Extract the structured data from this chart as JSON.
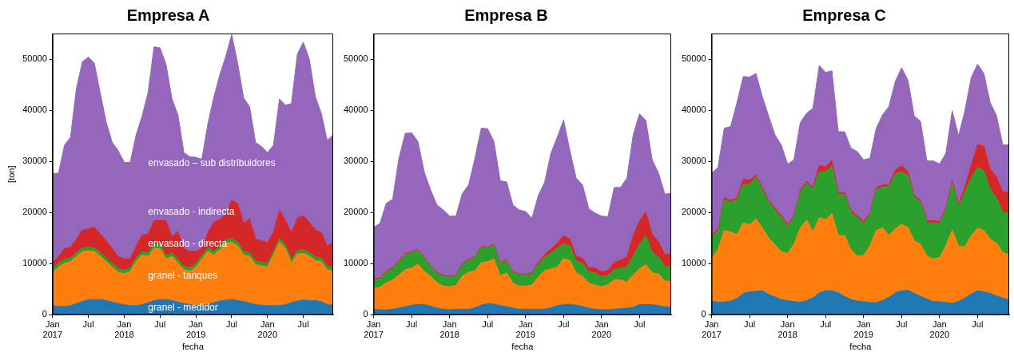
{
  "chart_data": [
    {
      "type": "area",
      "title": "Empresa A",
      "xlabel": "fecha",
      "ylabel": "[ton]",
      "stacked": true,
      "x": [
        "2017-01",
        "2017-02",
        "2017-03",
        "2017-04",
        "2017-05",
        "2017-06",
        "2017-07",
        "2017-08",
        "2017-09",
        "2017-10",
        "2017-11",
        "2017-12",
        "2018-01",
        "2018-02",
        "2018-03",
        "2018-04",
        "2018-05",
        "2018-06",
        "2018-07",
        "2018-08",
        "2018-09",
        "2018-10",
        "2018-11",
        "2018-12",
        "2019-01",
        "2019-02",
        "2019-03",
        "2019-04",
        "2019-05",
        "2019-06",
        "2019-07",
        "2019-08",
        "2019-09",
        "2019-10",
        "2019-11",
        "2019-12",
        "2020-01",
        "2020-02",
        "2020-03",
        "2020-04",
        "2020-05",
        "2020-06",
        "2020-07",
        "2020-08",
        "2020-09",
        "2020-10",
        "2020-11",
        "2020-12"
      ],
      "xlim": [
        "2017-01",
        "2020-12"
      ],
      "xticks": [
        {
          "value": "2017-01",
          "label": "Jan\n2017"
        },
        {
          "value": "2017-07",
          "label": "Jul"
        },
        {
          "value": "2018-01",
          "label": "Jan\n2018"
        },
        {
          "value": "2018-07",
          "label": "Jul"
        },
        {
          "value": "2019-01",
          "label": "Jan\n2019"
        },
        {
          "value": "2019-07",
          "label": "Jul"
        },
        {
          "value": "2020-01",
          "label": "Jan\n2020"
        },
        {
          "value": "2020-07",
          "label": "Jul"
        }
      ],
      "ylim": [
        0,
        55000
      ],
      "yticks": [
        0,
        10000,
        20000,
        30000,
        40000,
        50000
      ],
      "series": [
        {
          "name": "granel - medidor",
          "color": "#1f77b4",
          "values": [
            1800,
            1700,
            1600,
            1800,
            2200,
            2600,
            3000,
            3000,
            3000,
            2800,
            2500,
            2200,
            2000,
            1800,
            1800,
            2000,
            2400,
            2800,
            3000,
            3000,
            2800,
            2500,
            2200,
            2000,
            1800,
            1800,
            2000,
            2400,
            2700,
            2900,
            3000,
            2800,
            2600,
            2300,
            2000,
            1900,
            1800,
            1800,
            1800,
            2000,
            2400,
            2700,
            2900,
            2800,
            2800,
            2600,
            2000,
            1900
          ]
        },
        {
          "name": "granel - tanques",
          "color": "#ff7f0e",
          "values": [
            6500,
            7600,
            8500,
            8600,
            9200,
            9800,
            9500,
            9400,
            8400,
            7600,
            6800,
            6100,
            6000,
            6700,
            8600,
            9700,
            9000,
            10200,
            10000,
            7900,
            8600,
            7600,
            6600,
            6500,
            7500,
            9100,
            10400,
            9300,
            10000,
            11100,
            11200,
            10700,
            9100,
            9100,
            7800,
            7700,
            7500,
            9900,
            12400,
            11000,
            7700,
            9200,
            9100,
            8700,
            7800,
            7800,
            6800,
            6600
          ]
        },
        {
          "name": "envasado - directa",
          "color": "#2ca02c",
          "values": [
            700,
            700,
            700,
            700,
            700,
            700,
            700,
            700,
            700,
            700,
            700,
            700,
            700,
            700,
            700,
            700,
            700,
            700,
            700,
            700,
            700,
            700,
            700,
            700,
            700,
            700,
            700,
            700,
            700,
            700,
            700,
            700,
            700,
            700,
            700,
            700,
            700,
            700,
            700,
            700,
            700,
            700,
            700,
            700,
            700,
            700,
            700,
            700
          ]
        },
        {
          "name": "envasado - indirecta",
          "color": "#d62728",
          "values": [
            1100,
            1400,
            2200,
            2100,
            2700,
            3500,
            3600,
            4100,
            3700,
            3400,
            3000,
            2400,
            2200,
            1700,
            2400,
            3200,
            3700,
            4700,
            4700,
            6800,
            3200,
            5500,
            3500,
            3200,
            2400,
            1400,
            3000,
            5700,
            5300,
            5000,
            7500,
            7600,
            5500,
            6700,
            4300,
            4200,
            4200,
            3700,
            5600,
            4700,
            5300,
            6300,
            6700,
            5900,
            5300,
            5000,
            4000,
            5000
          ]
        },
        {
          "name": "envasado – sub distribuidores",
          "color": "#9467bd",
          "values": [
            17500,
            16300,
            20200,
            21500,
            29500,
            32900,
            33600,
            32000,
            27500,
            23100,
            20700,
            20700,
            18900,
            18900,
            21700,
            23300,
            27700,
            34000,
            33800,
            30600,
            26900,
            22800,
            18700,
            18500,
            18400,
            17400,
            21200,
            24400,
            28200,
            30800,
            32400,
            27400,
            24500,
            21900,
            18900,
            18400,
            17500,
            17100,
            21700,
            22600,
            25200,
            32100,
            33900,
            31900,
            26100,
            23300,
            20600,
            21000
          ]
        }
      ]
    },
    {
      "type": "area",
      "title": "Empresa B",
      "xlabel": "fecha",
      "stacked": true,
      "x": [
        "2017-01",
        "2017-02",
        "2017-03",
        "2017-04",
        "2017-05",
        "2017-06",
        "2017-07",
        "2017-08",
        "2017-09",
        "2017-10",
        "2017-11",
        "2017-12",
        "2018-01",
        "2018-02",
        "2018-03",
        "2018-04",
        "2018-05",
        "2018-06",
        "2018-07",
        "2018-08",
        "2018-09",
        "2018-10",
        "2018-11",
        "2018-12",
        "2019-01",
        "2019-02",
        "2019-03",
        "2019-04",
        "2019-05",
        "2019-06",
        "2019-07",
        "2019-08",
        "2019-09",
        "2019-10",
        "2019-11",
        "2019-12",
        "2020-01",
        "2020-02",
        "2020-03",
        "2020-04",
        "2020-05",
        "2020-06",
        "2020-07",
        "2020-08",
        "2020-09",
        "2020-10",
        "2020-11",
        "2020-12"
      ],
      "xlim": [
        "2017-01",
        "2020-12"
      ],
      "xticks": [
        {
          "value": "2017-01",
          "label": "Jan\n2017"
        },
        {
          "value": "2017-07",
          "label": "Jul"
        },
        {
          "value": "2018-01",
          "label": "Jan\n2018"
        },
        {
          "value": "2018-07",
          "label": "Jul"
        },
        {
          "value": "2019-01",
          "label": "Jan\n2019"
        },
        {
          "value": "2019-07",
          "label": "Jul"
        },
        {
          "value": "2020-01",
          "label": "Jan\n2020"
        },
        {
          "value": "2020-07",
          "label": "Jul"
        }
      ],
      "ylim": [
        0,
        55000
      ],
      "yticks": [
        0,
        10000,
        20000,
        30000,
        40000,
        50000
      ],
      "series": [
        {
          "color": "#1f77b4",
          "values": [
            1100,
            1000,
            1000,
            1100,
            1300,
            1600,
            1900,
            2000,
            2000,
            1700,
            1300,
            1100,
            1000,
            1100,
            1100,
            1100,
            1400,
            1900,
            2200,
            2100,
            1800,
            1600,
            1300,
            1100,
            1100,
            1100,
            1100,
            1100,
            1400,
            1800,
            2000,
            2100,
            1900,
            1600,
            1300,
            1100,
            1000,
            1000,
            1100,
            1200,
            1300,
            1500,
            2000,
            2000,
            2000,
            1800,
            1600,
            1400
          ]
        },
        {
          "color": "#ff7f0e",
          "values": [
            4100,
            4400,
            5300,
            5700,
            6500,
            7200,
            7200,
            7900,
            6500,
            5800,
            5000,
            4500,
            4500,
            4600,
            6500,
            7200,
            7200,
            8300,
            8200,
            8800,
            5800,
            6600,
            4900,
            4500,
            4500,
            4700,
            6300,
            7500,
            7600,
            7500,
            9000,
            8500,
            6300,
            5900,
            4900,
            4700,
            4500,
            4900,
            5700,
            5600,
            5100,
            6300,
            7000,
            7800,
            6200,
            6200,
            5000,
            5200
          ]
        },
        {
          "color": "#2ca02c",
          "values": [
            1700,
            1600,
            2100,
            2200,
            2700,
            3000,
            3000,
            2700,
            2500,
            2000,
            1900,
            1900,
            1900,
            1800,
            2200,
            2300,
            2600,
            3000,
            2600,
            2700,
            2400,
            2300,
            2100,
            2200,
            2200,
            2200,
            2600,
            2600,
            3100,
            3700,
            2900,
            2900,
            2300,
            2600,
            2200,
            2400,
            1900,
            1800,
            2100,
            2300,
            2900,
            3700,
            4800,
            5700,
            4000,
            3300,
            2800,
            3000
          ]
        },
        {
          "color": "#d62728",
          "values": [
            200,
            200,
            200,
            200,
            200,
            200,
            200,
            200,
            200,
            200,
            200,
            200,
            200,
            200,
            200,
            200,
            200,
            200,
            200,
            200,
            200,
            200,
            200,
            200,
            200,
            200,
            300,
            500,
            800,
            1000,
            1600,
            1300,
            1000,
            1000,
            800,
            1000,
            1000,
            1000,
            1400,
            1600,
            2000,
            4000,
            4600,
            4600,
            3500,
            3000,
            2400,
            2400
          ]
        },
        {
          "color": "#9467bd",
          "values": [
            10000,
            10700,
            13200,
            13400,
            19900,
            23500,
            23300,
            21100,
            16700,
            14700,
            13100,
            12800,
            11700,
            11600,
            13700,
            14600,
            19200,
            23100,
            23200,
            20100,
            16000,
            15300,
            13000,
            12500,
            12200,
            10700,
            13000,
            14200,
            18700,
            20700,
            22600,
            17300,
            15200,
            14300,
            11500,
            10700,
            10900,
            10500,
            14600,
            14200,
            15400,
            19700,
            20900,
            17900,
            14600,
            13400,
            11800,
            11800
          ]
        }
      ]
    },
    {
      "type": "area",
      "title": "Empresa C",
      "xlabel": "fecha",
      "stacked": true,
      "x": [
        "2017-01",
        "2017-02",
        "2017-03",
        "2017-04",
        "2017-05",
        "2017-06",
        "2017-07",
        "2017-08",
        "2017-09",
        "2017-10",
        "2017-11",
        "2017-12",
        "2018-01",
        "2018-02",
        "2018-03",
        "2018-04",
        "2018-05",
        "2018-06",
        "2018-07",
        "2018-08",
        "2018-09",
        "2018-10",
        "2018-11",
        "2018-12",
        "2019-01",
        "2019-02",
        "2019-03",
        "2019-04",
        "2019-05",
        "2019-06",
        "2019-07",
        "2019-08",
        "2019-09",
        "2019-10",
        "2019-11",
        "2019-12",
        "2020-01",
        "2020-02",
        "2020-03",
        "2020-04",
        "2020-05",
        "2020-06",
        "2020-07",
        "2020-08",
        "2020-09",
        "2020-10",
        "2020-11",
        "2020-12"
      ],
      "xlim": [
        "2017-01",
        "2020-12"
      ],
      "xticks": [
        {
          "value": "2017-01",
          "label": "Jan\n2017"
        },
        {
          "value": "2017-07",
          "label": "Jul"
        },
        {
          "value": "2018-01",
          "label": "Jan\n2018"
        },
        {
          "value": "2018-07",
          "label": "Jul"
        },
        {
          "value": "2019-01",
          "label": "Jan\n2019"
        },
        {
          "value": "2019-07",
          "label": "Jul"
        },
        {
          "value": "2020-01",
          "label": "Jan\n2020"
        },
        {
          "value": "2020-07",
          "label": "Jul"
        }
      ],
      "ylim": [
        0,
        55000
      ],
      "yticks": [
        0,
        10000,
        20000,
        30000,
        40000,
        50000
      ],
      "series": [
        {
          "color": "#1f77b4",
          "values": [
            2700,
            2500,
            2500,
            2700,
            3200,
            4200,
            4500,
            4600,
            4700,
            4000,
            3500,
            3000,
            2800,
            2600,
            2500,
            2800,
            3300,
            4300,
            4700,
            4700,
            4300,
            3600,
            3000,
            2700,
            2600,
            2400,
            2400,
            2800,
            3400,
            4300,
            4700,
            4800,
            4200,
            3600,
            3100,
            2600,
            2600,
            2400,
            2300,
            2600,
            3300,
            4100,
            4700,
            4500,
            4200,
            3700,
            3300,
            2900
          ]
        },
        {
          "color": "#ff7f0e",
          "values": [
            8300,
            10300,
            14000,
            13500,
            12500,
            13800,
            13100,
            14200,
            12300,
            11000,
            10200,
            9300,
            9200,
            11200,
            14500,
            15700,
            12900,
            14700,
            13900,
            15100,
            11200,
            11900,
            9700,
            8800,
            9000,
            11100,
            14100,
            14200,
            12100,
            12500,
            13000,
            12300,
            10300,
            10200,
            8400,
            8300,
            8600,
            11100,
            14300,
            10800,
            10000,
            11400,
            12200,
            12000,
            10600,
            10300,
            8900,
            8800
          ]
        },
        {
          "color": "#2ca02c",
          "values": [
            4000,
            3700,
            6000,
            5800,
            6800,
            7500,
            7900,
            8200,
            7500,
            7000,
            6800,
            6700,
            5300,
            5200,
            7000,
            7300,
            8300,
            9000,
            9400,
            9200,
            8000,
            8000,
            7300,
            7500,
            6300,
            6000,
            8000,
            8000,
            9500,
            10700,
            10300,
            10100,
            8500,
            8200,
            6500,
            7100,
            6600,
            7000,
            9200,
            7600,
            10700,
            11300,
            11900,
            11700,
            9700,
            8800,
            7800,
            8100
          ]
        },
        {
          "color": "#d62728",
          "values": [
            400,
            400,
            400,
            400,
            400,
            1000,
            800,
            400,
            400,
            400,
            400,
            400,
            400,
            400,
            400,
            400,
            400,
            1200,
            1000,
            1200,
            400,
            400,
            400,
            400,
            400,
            400,
            400,
            400,
            400,
            800,
            1200,
            800,
            400,
            400,
            400,
            400,
            400,
            400,
            500,
            600,
            1000,
            2500,
            4500,
            4800,
            4000,
            4200,
            4000,
            4200
          ]
        },
        {
          "color": "#9467bd",
          "values": [
            12300,
            11900,
            13600,
            14400,
            18600,
            20100,
            20200,
            19800,
            17800,
            16500,
            14300,
            13800,
            11800,
            10900,
            13200,
            13200,
            15500,
            19500,
            18400,
            17500,
            11900,
            11900,
            12200,
            12500,
            12000,
            10700,
            11600,
            13700,
            15300,
            17300,
            19100,
            17900,
            15500,
            15400,
            11700,
            11700,
            11300,
            10700,
            13600,
            13400,
            14900,
            17100,
            15700,
            14200,
            13000,
            11900,
            9200,
            9300
          ]
        }
      ]
    }
  ]
}
